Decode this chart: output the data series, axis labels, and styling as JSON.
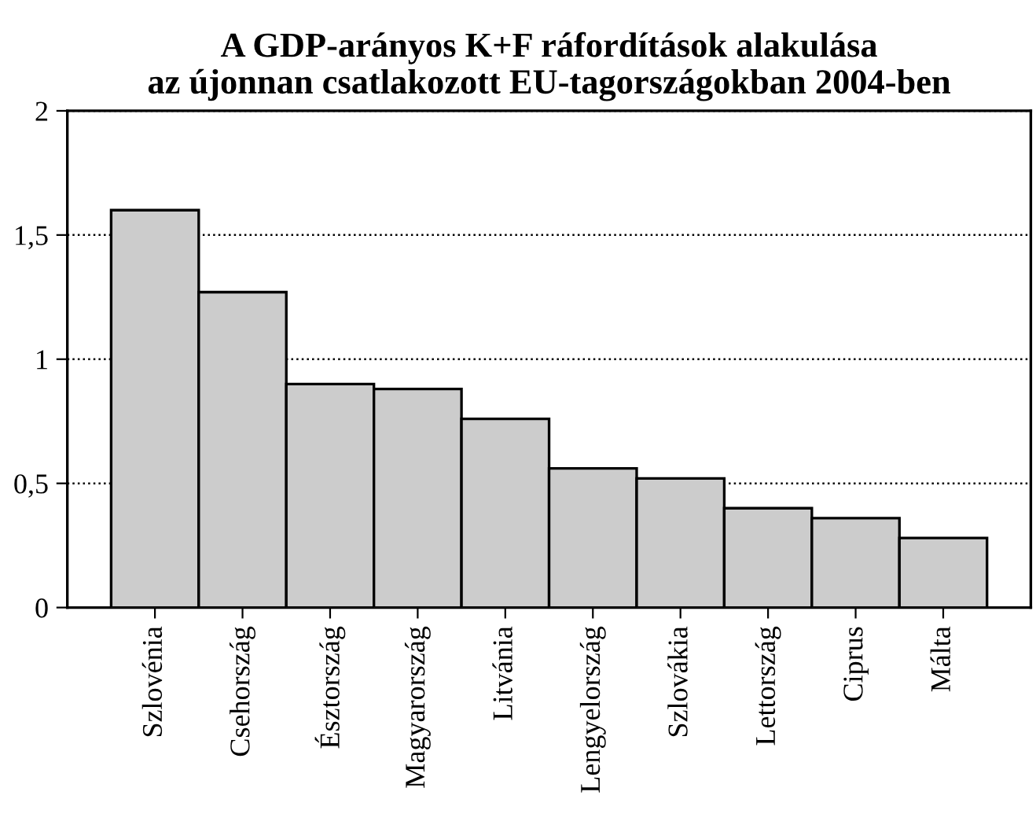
{
  "chart_data": {
    "type": "bar",
    "title": "A GDP-arányos K+F ráfordítások alakulása\naz újonnan csatlakozott EU-tagországokban 2004-ben",
    "categories": [
      "Szlovénia",
      "Csehország",
      "Észtország",
      "Magyarország",
      "Litvánia",
      "Lengyelország",
      "Szlovákia",
      "Lettország",
      "Ciprus",
      "Málta"
    ],
    "values": [
      1.6,
      1.27,
      0.9,
      0.88,
      0.76,
      0.56,
      0.52,
      0.4,
      0.36,
      0.28
    ],
    "color": "#cccccc",
    "ylim": [
      0,
      2
    ],
    "yticks": [
      0,
      {
        "value": 0.5,
        "label": "0,5"
      },
      1,
      {
        "value": 1.5,
        "label": "1,5"
      },
      2
    ],
    "grid": "y",
    "line_style": "dotted",
    "legend": false
  }
}
